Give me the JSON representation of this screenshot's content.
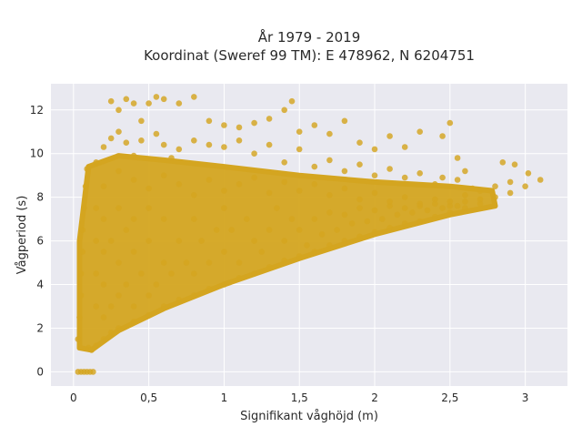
{
  "chart_data": {
    "type": "scatter",
    "title": "År 1979 - 2019",
    "subtitle": "Koordinat (Sweref 99 TM): E 478962, N 6204751",
    "xlabel": "Signifikant våghöjd (m)",
    "ylabel": "Vågperiod (s)",
    "xlim": [
      -0.15,
      3.28
    ],
    "ylim": [
      -0.65,
      13.2
    ],
    "xticks": [
      0,
      0.5,
      1,
      1.5,
      2,
      2.5,
      3
    ],
    "xtick_labels": [
      "0",
      "0,5",
      "1",
      "1,5",
      "2",
      "2,5",
      "3"
    ],
    "yticks": [
      0,
      2,
      4,
      6,
      8,
      10,
      12
    ],
    "ytick_labels": [
      "0",
      "2",
      "4",
      "6",
      "8",
      "10",
      "12"
    ],
    "grid": true,
    "legend": "none",
    "marker_color": "#D4A520",
    "plot_background": "#E9E9F0",
    "series": [
      {
        "points": [
          [
            0.03,
            0.0
          ],
          [
            0.05,
            0.0
          ],
          [
            0.07,
            0.0
          ],
          [
            0.09,
            0.0
          ],
          [
            0.11,
            0.0
          ],
          [
            0.13,
            0.0
          ],
          [
            0.03,
            1.5
          ],
          [
            0.04,
            2.5
          ],
          [
            0.05,
            3.5
          ],
          [
            0.05,
            4.5
          ],
          [
            0.06,
            5.5
          ],
          [
            0.06,
            6.5
          ],
          [
            0.07,
            7.5
          ],
          [
            0.08,
            8.5
          ],
          [
            0.09,
            9.3
          ],
          [
            0.1,
            1.1
          ],
          [
            0.12,
            1.0
          ],
          [
            0.15,
            1.2
          ],
          [
            0.2,
            1.5
          ],
          [
            0.25,
            1.8
          ],
          [
            0.3,
            2.0
          ],
          [
            0.4,
            2.3
          ],
          [
            0.5,
            2.6
          ],
          [
            0.6,
            3.0
          ],
          [
            0.7,
            3.3
          ],
          [
            0.8,
            3.5
          ],
          [
            0.9,
            3.8
          ],
          [
            1.0,
            4.0
          ],
          [
            1.1,
            4.3
          ],
          [
            1.2,
            4.5
          ],
          [
            1.3,
            4.8
          ],
          [
            1.4,
            5.1
          ],
          [
            1.5,
            5.3
          ],
          [
            1.6,
            5.5
          ],
          [
            1.7,
            5.8
          ],
          [
            1.8,
            6.0
          ],
          [
            1.9,
            6.2
          ],
          [
            2.0,
            6.4
          ],
          [
            2.1,
            6.6
          ],
          [
            2.2,
            6.8
          ],
          [
            2.3,
            6.9
          ],
          [
            2.4,
            7.1
          ],
          [
            2.5,
            7.3
          ],
          [
            2.6,
            7.5
          ],
          [
            2.7,
            7.7
          ],
          [
            2.8,
            8.0
          ],
          [
            2.9,
            8.2
          ],
          [
            3.0,
            8.5
          ],
          [
            3.1,
            8.8
          ],
          [
            3.02,
            9.1
          ],
          [
            2.93,
            9.5
          ],
          [
            2.85,
            9.6
          ],
          [
            2.65,
            8.4
          ],
          [
            2.55,
            8.8
          ],
          [
            2.45,
            8.9
          ],
          [
            0.25,
            12.4
          ],
          [
            0.3,
            12.0
          ],
          [
            0.35,
            12.5
          ],
          [
            0.4,
            12.3
          ],
          [
            0.45,
            11.5
          ],
          [
            0.5,
            12.3
          ],
          [
            0.55,
            12.6
          ],
          [
            0.6,
            12.5
          ],
          [
            0.7,
            12.3
          ],
          [
            0.8,
            12.6
          ],
          [
            0.9,
            11.5
          ],
          [
            1.0,
            11.3
          ],
          [
            1.1,
            11.2
          ],
          [
            1.2,
            11.4
          ],
          [
            1.3,
            11.6
          ],
          [
            1.4,
            12.0
          ],
          [
            1.45,
            12.4
          ],
          [
            1.5,
            11.0
          ],
          [
            1.6,
            11.3
          ],
          [
            1.7,
            10.9
          ],
          [
            1.8,
            11.5
          ],
          [
            1.9,
            10.5
          ],
          [
            2.0,
            10.2
          ],
          [
            2.1,
            10.8
          ],
          [
            2.2,
            10.3
          ],
          [
            2.3,
            11.0
          ],
          [
            2.45,
            10.8
          ],
          [
            2.5,
            11.4
          ],
          [
            2.55,
            9.8
          ],
          [
            2.6,
            9.2
          ],
          [
            0.15,
            9.6
          ],
          [
            0.2,
            10.3
          ],
          [
            0.25,
            10.7
          ],
          [
            0.3,
            11.0
          ],
          [
            0.35,
            10.5
          ],
          [
            0.4,
            9.9
          ],
          [
            0.45,
            10.6
          ],
          [
            0.55,
            10.9
          ],
          [
            0.6,
            10.4
          ],
          [
            0.65,
            9.8
          ],
          [
            0.7,
            10.2
          ],
          [
            0.8,
            10.6
          ],
          [
            0.9,
            10.4
          ],
          [
            1.0,
            10.3
          ],
          [
            1.1,
            10.6
          ],
          [
            1.2,
            10.0
          ],
          [
            1.3,
            10.4
          ],
          [
            1.4,
            9.6
          ],
          [
            1.5,
            10.2
          ],
          [
            1.6,
            9.4
          ],
          [
            1.7,
            9.7
          ],
          [
            1.8,
            9.2
          ],
          [
            1.9,
            9.5
          ],
          [
            2.0,
            9.0
          ],
          [
            2.1,
            9.3
          ],
          [
            2.2,
            8.9
          ],
          [
            2.3,
            9.1
          ],
          [
            2.4,
            8.6
          ],
          [
            0.2,
            8.5
          ],
          [
            0.3,
            9.2
          ],
          [
            0.4,
            8.8
          ],
          [
            0.5,
            8.4
          ],
          [
            0.6,
            9.0
          ],
          [
            0.7,
            8.6
          ],
          [
            0.8,
            8.1
          ],
          [
            0.9,
            8.8
          ],
          [
            1.0,
            8.3
          ],
          [
            1.1,
            8.6
          ],
          [
            1.2,
            8.9
          ],
          [
            1.3,
            8.2
          ],
          [
            1.4,
            8.7
          ],
          [
            1.5,
            8.3
          ],
          [
            1.6,
            8.6
          ],
          [
            1.7,
            8.1
          ],
          [
            1.8,
            8.4
          ],
          [
            1.9,
            7.9
          ],
          [
            2.0,
            8.2
          ],
          [
            2.1,
            7.8
          ],
          [
            2.2,
            8.0
          ],
          [
            2.3,
            7.7
          ],
          [
            2.4,
            7.9
          ],
          [
            2.5,
            7.6
          ],
          [
            2.6,
            7.8
          ],
          [
            2.7,
            7.9
          ],
          [
            0.15,
            3.0
          ],
          [
            0.15,
            4.5
          ],
          [
            0.15,
            6.0
          ],
          [
            0.15,
            7.5
          ],
          [
            0.2,
            2.5
          ],
          [
            0.2,
            4.0
          ],
          [
            0.2,
            5.5
          ],
          [
            0.2,
            7.0
          ],
          [
            0.25,
            3.0
          ],
          [
            0.25,
            6.0
          ],
          [
            0.3,
            3.5
          ],
          [
            0.3,
            5.0
          ],
          [
            0.3,
            7.5
          ],
          [
            0.35,
            4.0
          ],
          [
            0.35,
            6.5
          ],
          [
            0.4,
            3.0
          ],
          [
            0.4,
            5.5
          ],
          [
            0.4,
            7.0
          ],
          [
            0.45,
            4.5
          ],
          [
            0.5,
            3.5
          ],
          [
            0.5,
            6.0
          ],
          [
            0.5,
            7.5
          ],
          [
            0.55,
            4.0
          ],
          [
            0.6,
            5.0
          ],
          [
            0.6,
            7.0
          ],
          [
            0.65,
            4.5
          ],
          [
            0.7,
            6.0
          ],
          [
            0.75,
            5.0
          ],
          [
            0.8,
            4.5
          ],
          [
            0.8,
            7.0
          ],
          [
            0.85,
            6.0
          ],
          [
            0.9,
            5.0
          ],
          [
            0.95,
            6.5
          ],
          [
            1.0,
            5.5
          ],
          [
            1.0,
            7.5
          ],
          [
            1.05,
            6.5
          ],
          [
            1.1,
            5.0
          ],
          [
            1.15,
            7.0
          ],
          [
            1.2,
            6.0
          ],
          [
            1.25,
            5.5
          ],
          [
            1.3,
            6.5
          ],
          [
            1.35,
            7.5
          ],
          [
            1.4,
            6.0
          ],
          [
            1.45,
            7.0
          ],
          [
            1.5,
            6.5
          ],
          [
            1.55,
            5.8
          ],
          [
            1.6,
            7.0
          ],
          [
            1.65,
            6.3
          ],
          [
            1.7,
            7.3
          ],
          [
            1.75,
            6.5
          ],
          [
            1.8,
            7.2
          ],
          [
            1.85,
            6.8
          ],
          [
            1.9,
            7.5
          ],
          [
            1.95,
            6.9
          ],
          [
            2.0,
            7.4
          ],
          [
            2.05,
            7.0
          ],
          [
            2.1,
            7.6
          ],
          [
            2.15,
            7.2
          ],
          [
            2.2,
            7.5
          ],
          [
            2.25,
            7.3
          ],
          [
            2.3,
            7.6
          ],
          [
            2.35,
            7.4
          ],
          [
            2.4,
            7.7
          ],
          [
            2.45,
            7.5
          ],
          [
            2.5,
            7.8
          ],
          [
            2.55,
            7.6
          ],
          [
            2.6,
            8.1
          ],
          [
            2.7,
            8.3
          ],
          [
            2.8,
            8.5
          ],
          [
            2.9,
            8.7
          ]
        ]
      }
    ]
  }
}
